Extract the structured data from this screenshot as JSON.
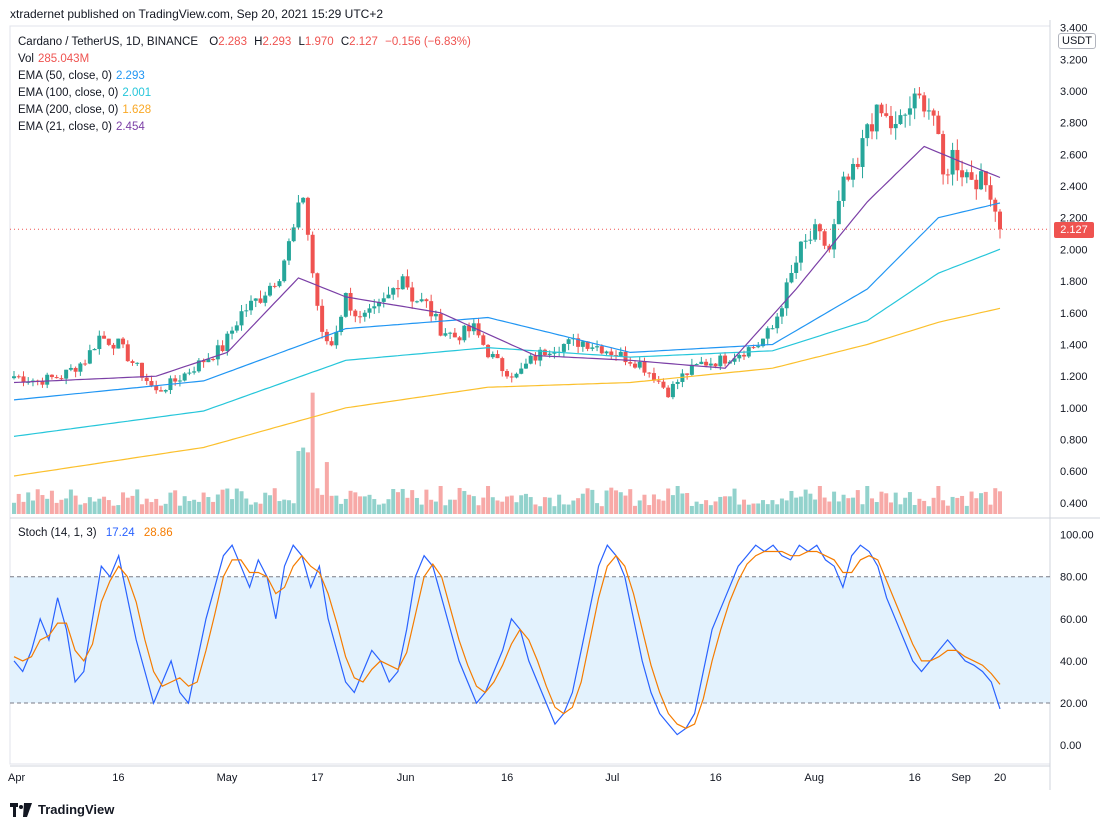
{
  "header": {
    "published": "xtradernet published on TradingView.com, Sep 20, 2021 15:29 UTC+2"
  },
  "legend": {
    "symbol": "Cardano / TetherUS, 1D, BINANCE",
    "o_label": "O",
    "o_val": "2.283",
    "h_label": "H",
    "h_val": "2.293",
    "l_label": "L",
    "l_val": "1.970",
    "c_label": "C",
    "c_val": "2.127",
    "change": "−0.156 (−6.83%)",
    "vol_label": "Vol",
    "vol_val": "285.043M",
    "ema50_label": "EMA (50, close, 0)",
    "ema50_val": "2.293",
    "ema100_label": "EMA (100, close, 0)",
    "ema100_val": "2.001",
    "ema200_label": "EMA (200, close, 0)",
    "ema200_val": "1.628",
    "ema21_label": "EMA (21, close, 0)",
    "ema21_val": "2.454"
  },
  "stoch_legend": {
    "label": "Stoch (14, 1, 3)",
    "k_val": "17.24",
    "d_val": "28.86"
  },
  "price_axis": {
    "currency": "USDT",
    "last_price": "2.127"
  },
  "footer": {
    "brand": "TradingView"
  },
  "colors": {
    "up": "#26a69a",
    "down": "#ef5350",
    "ema50": "#2196f3",
    "ema100": "#26c6da",
    "ema200": "#fbc02d",
    "ema21": "#7b3fa6",
    "stoch_k": "#2962ff",
    "stoch_d": "#f57c00",
    "stoch_band": "#e3f2fd"
  },
  "chart_data": [
    {
      "type": "candlestick",
      "title": "Cardano / TetherUS, 1D, BINANCE",
      "y_ticks": [
        "3.400",
        "3.200",
        "3.000",
        "2.800",
        "2.600",
        "2.400",
        "2.200",
        "2.000",
        "1.800",
        "1.600",
        "1.400",
        "1.200",
        "1.000",
        "0.800",
        "0.600",
        "0.400"
      ],
      "ylim": [
        0.33,
        3.41
      ],
      "x_ticks": [
        "Apr",
        "16",
        "May",
        "17",
        "Jun",
        "16",
        "Jul",
        "16",
        "Aug",
        "16",
        "Sep",
        "20"
      ],
      "anchors": [
        [
          0,
          1.2
        ],
        [
          5,
          1.17
        ],
        [
          10,
          1.2
        ],
        [
          15,
          1.3
        ],
        [
          18,
          1.45
        ],
        [
          22,
          1.4
        ],
        [
          26,
          1.25
        ],
        [
          30,
          1.1
        ],
        [
          34,
          1.17
        ],
        [
          40,
          1.3
        ],
        [
          44,
          1.38
        ],
        [
          48,
          1.6
        ],
        [
          52,
          1.7
        ],
        [
          56,
          1.85
        ],
        [
          59,
          2.12
        ],
        [
          61,
          2.35
        ],
        [
          63,
          1.85
        ],
        [
          65,
          1.45
        ],
        [
          67,
          1.4
        ],
        [
          70,
          1.7
        ],
        [
          73,
          1.55
        ],
        [
          76,
          1.6
        ],
        [
          79,
          1.7
        ],
        [
          82,
          1.85
        ],
        [
          84,
          1.7
        ],
        [
          87,
          1.65
        ],
        [
          90,
          1.5
        ],
        [
          93,
          1.45
        ],
        [
          97,
          1.5
        ],
        [
          100,
          1.35
        ],
        [
          103,
          1.25
        ],
        [
          106,
          1.2
        ],
        [
          109,
          1.3
        ],
        [
          113,
          1.38
        ],
        [
          116,
          1.4
        ],
        [
          120,
          1.42
        ],
        [
          124,
          1.38
        ],
        [
          128,
          1.33
        ],
        [
          132,
          1.28
        ],
        [
          135,
          1.2
        ],
        [
          138,
          1.1
        ],
        [
          141,
          1.2
        ],
        [
          145,
          1.28
        ],
        [
          149,
          1.3
        ],
        [
          153,
          1.35
        ],
        [
          157,
          1.4
        ],
        [
          160,
          1.5
        ],
        [
          163,
          1.75
        ],
        [
          166,
          2.0
        ],
        [
          169,
          2.1
        ],
        [
          172,
          2.0
        ],
        [
          175,
          2.4
        ],
        [
          178,
          2.5
        ],
        [
          180,
          2.8
        ],
        [
          183,
          2.85
        ],
        [
          186,
          2.75
        ],
        [
          189,
          2.9
        ],
        [
          192,
          2.95
        ],
        [
          194,
          2.85
        ],
        [
          196,
          2.45
        ],
        [
          198,
          2.6
        ],
        [
          200,
          2.5
        ],
        [
          203,
          2.45
        ],
        [
          206,
          2.38
        ],
        [
          208,
          2.127
        ]
      ],
      "ema50": [
        [
          0,
          1.05
        ],
        [
          40,
          1.17
        ],
        [
          70,
          1.5
        ],
        [
          100,
          1.57
        ],
        [
          130,
          1.35
        ],
        [
          160,
          1.4
        ],
        [
          180,
          1.75
        ],
        [
          195,
          2.2
        ],
        [
          208,
          2.293
        ]
      ],
      "ema100": [
        [
          0,
          0.82
        ],
        [
          40,
          0.98
        ],
        [
          70,
          1.3
        ],
        [
          100,
          1.38
        ],
        [
          130,
          1.32
        ],
        [
          160,
          1.36
        ],
        [
          180,
          1.55
        ],
        [
          195,
          1.85
        ],
        [
          208,
          2.001
        ]
      ],
      "ema200": [
        [
          0,
          0.57
        ],
        [
          40,
          0.75
        ],
        [
          70,
          1.0
        ],
        [
          100,
          1.13
        ],
        [
          130,
          1.16
        ],
        [
          160,
          1.25
        ],
        [
          180,
          1.4
        ],
        [
          195,
          1.54
        ],
        [
          208,
          1.628
        ]
      ],
      "ema21": [
        [
          0,
          1.16
        ],
        [
          30,
          1.2
        ],
        [
          45,
          1.35
        ],
        [
          60,
          1.82
        ],
        [
          70,
          1.7
        ],
        [
          90,
          1.6
        ],
        [
          110,
          1.33
        ],
        [
          130,
          1.3
        ],
        [
          150,
          1.25
        ],
        [
          165,
          1.75
        ],
        [
          180,
          2.3
        ],
        [
          192,
          2.65
        ],
        [
          200,
          2.55
        ],
        [
          208,
          2.454
        ]
      ],
      "volume": {
        "ylim": [
          0,
          0.9
        ],
        "last": "285.043M"
      }
    },
    {
      "type": "line",
      "title": "Stoch (14, 1, 3)",
      "y_ticks": [
        "100.00",
        "80.00",
        "60.00",
        "40.00",
        "20.00",
        "0.00"
      ],
      "ylim": [
        -8,
        106
      ],
      "bands": [
        20,
        80
      ],
      "series": [
        {
          "name": "K",
          "last": 17.24,
          "values": [
            40,
            35,
            45,
            60,
            50,
            70,
            55,
            30,
            35,
            60,
            85,
            80,
            90,
            70,
            50,
            35,
            20,
            30,
            40,
            25,
            20,
            40,
            60,
            75,
            90,
            95,
            85,
            75,
            88,
            80,
            60,
            85,
            95,
            90,
            75,
            85,
            60,
            45,
            30,
            25,
            35,
            45,
            40,
            30,
            35,
            55,
            80,
            90,
            85,
            70,
            55,
            40,
            30,
            20,
            25,
            35,
            45,
            60,
            55,
            40,
            30,
            20,
            10,
            15,
            25,
            45,
            65,
            85,
            95,
            90,
            80,
            60,
            40,
            25,
            15,
            10,
            5,
            8,
            15,
            35,
            55,
            65,
            75,
            85,
            90,
            95,
            92,
            95,
            90,
            88,
            95,
            92,
            95,
            88,
            85,
            75,
            90,
            95,
            92,
            85,
            70,
            60,
            50,
            40,
            35,
            40,
            45,
            50,
            45,
            40,
            38,
            35,
            30,
            17.24
          ]
        },
        {
          "name": "D",
          "last": 28.86,
          "values": [
            42,
            40,
            42,
            50,
            52,
            58,
            58,
            45,
            40,
            48,
            68,
            78,
            85,
            80,
            68,
            50,
            35,
            28,
            30,
            32,
            28,
            30,
            45,
            62,
            80,
            88,
            88,
            82,
            82,
            80,
            72,
            75,
            85,
            90,
            85,
            82,
            72,
            58,
            42,
            32,
            30,
            36,
            40,
            38,
            36,
            44,
            62,
            80,
            86,
            80,
            65,
            50,
            38,
            28,
            25,
            30,
            38,
            48,
            55,
            50,
            40,
            28,
            18,
            15,
            18,
            30,
            50,
            70,
            85,
            90,
            85,
            72,
            55,
            38,
            25,
            15,
            10,
            8,
            10,
            22,
            40,
            55,
            68,
            78,
            86,
            90,
            92,
            92,
            92,
            90,
            90,
            92,
            92,
            90,
            88,
            82,
            82,
            88,
            90,
            88,
            78,
            68,
            58,
            48,
            40,
            40,
            42,
            45,
            45,
            42,
            40,
            38,
            34,
            28.86
          ]
        }
      ]
    }
  ]
}
